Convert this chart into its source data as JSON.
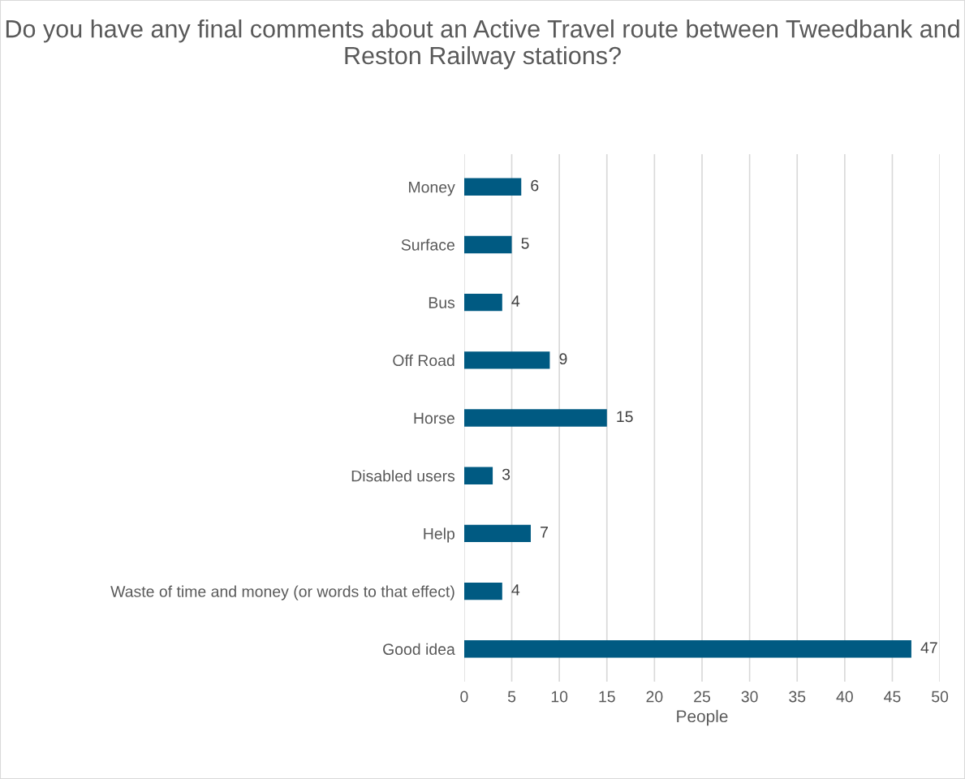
{
  "chart_data": {
    "type": "bar",
    "orientation": "horizontal",
    "title": "Do you have any final comments about an Active Travel route between Tweedbank and Reston Railway stations?",
    "categories": [
      "Money",
      "Surface",
      "Bus",
      "Off Road",
      "Horse",
      "Disabled users",
      "Help",
      "Waste of time and money (or words to that effect)",
      "Good idea"
    ],
    "values": [
      6,
      5,
      4,
      9,
      15,
      3,
      7,
      4,
      47
    ],
    "color": "#005a82",
    "xlabel": "People",
    "xlim": [
      0,
      50
    ],
    "xticks": [
      0,
      5,
      10,
      15,
      20,
      25,
      30,
      35,
      40,
      45,
      50
    ],
    "grid": "x",
    "data_labels": true
  }
}
